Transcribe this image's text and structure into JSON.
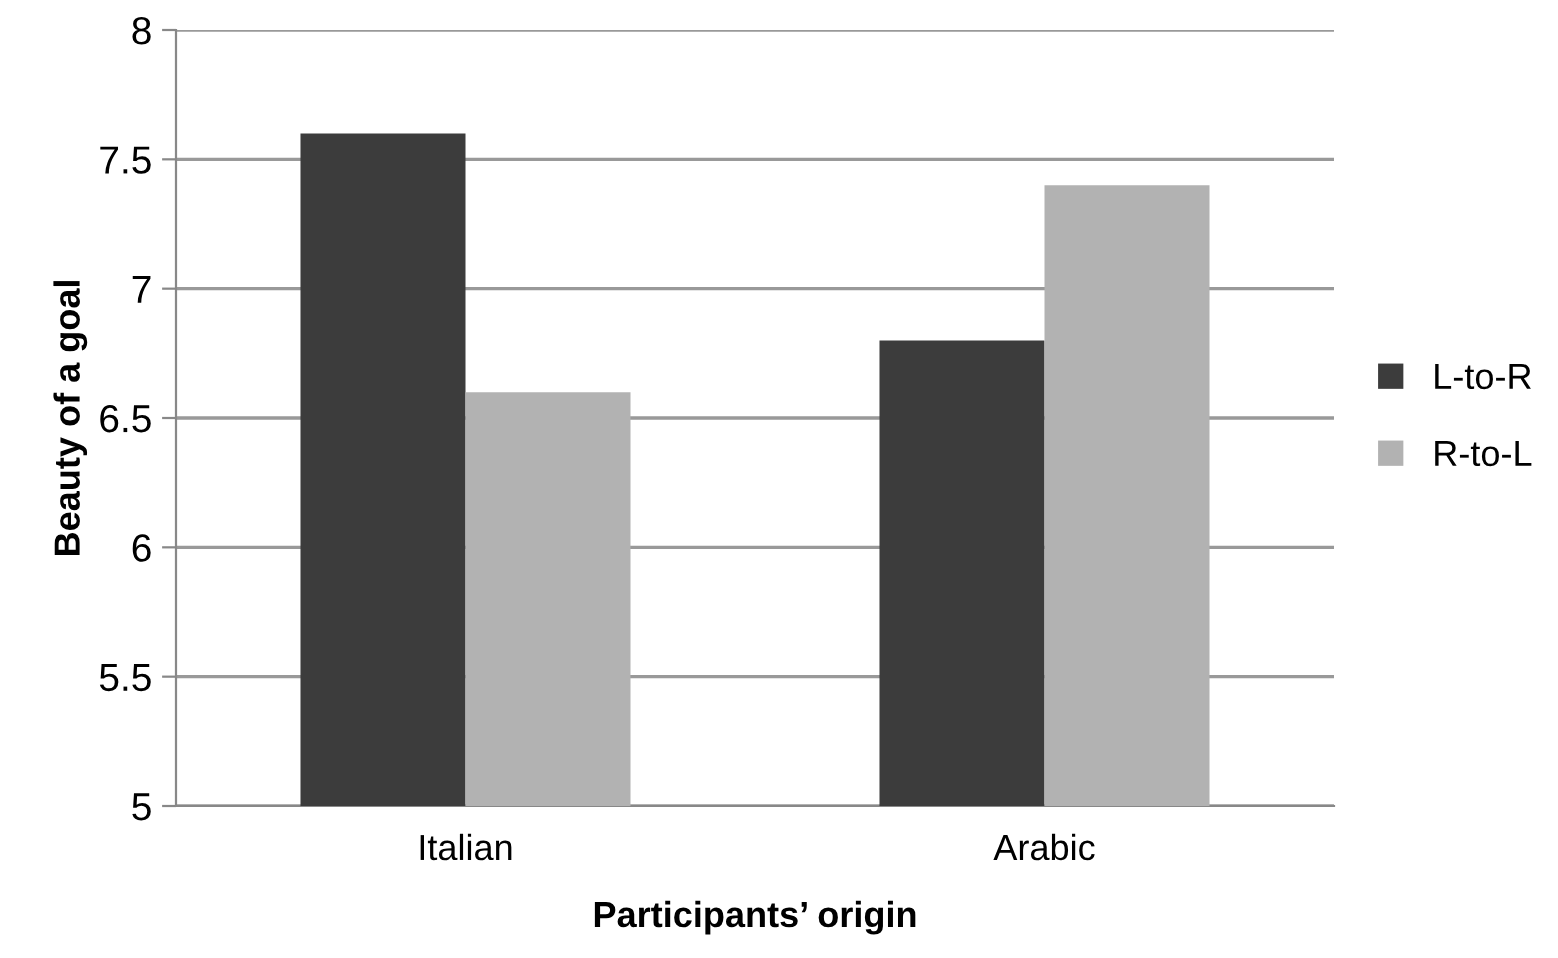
{
  "chart_data": {
    "type": "bar",
    "xlabel": "Participants’ origin",
    "ylabel": "Beauty of a goal",
    "categories": [
      "Italian",
      "Arabic"
    ],
    "series": [
      {
        "name": "L-to-R",
        "color": "#3c3c3c",
        "values": [
          7.6,
          6.8
        ]
      },
      {
        "name": "R-to-L",
        "color": "#b2b2b2",
        "values": [
          6.6,
          7.4
        ]
      }
    ],
    "ylim": [
      5,
      8
    ],
    "yticks": [
      5,
      5.5,
      6,
      6.5,
      7,
      7.5,
      8
    ],
    "grid": "y",
    "legend": "right"
  }
}
